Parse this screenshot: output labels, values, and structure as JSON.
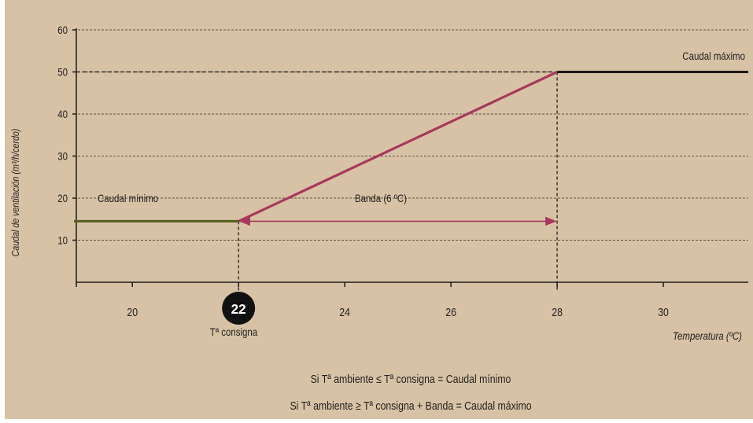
{
  "colors": {
    "background": "#d8c2a5",
    "grid": "#5e5448",
    "axis": "#1a1a1a",
    "ramp": "#a8385e",
    "min_segment": "#4f5e1e",
    "max_segment": "#1a1a1a",
    "band_arrow": "#a8385e",
    "setpoint_circle": "#111111",
    "setpoint_text": "#ffffff"
  },
  "chart_data": {
    "type": "line",
    "ylabel": "Caudal de ventilación (m³/h/cerdo)",
    "xlabel": "Temperatura (ºC)",
    "xlim": [
      18.9,
      31.6
    ],
    "ylim": [
      0,
      60
    ],
    "x_ticks": [
      {
        "value": 20,
        "label": "20"
      },
      {
        "value": 22,
        "label": "22"
      },
      {
        "value": 24,
        "label": "24"
      },
      {
        "value": 26,
        "label": "26"
      },
      {
        "value": 28,
        "label": "28"
      },
      {
        "value": 30,
        "label": "30"
      }
    ],
    "y_ticks": [
      {
        "value": 10,
        "label": "10"
      },
      {
        "value": 20,
        "label": "20"
      },
      {
        "value": 30,
        "label": "30"
      },
      {
        "value": 40,
        "label": "40"
      },
      {
        "value": 50,
        "label": "50"
      },
      {
        "value": 60,
        "label": "60"
      }
    ],
    "grid_y": [
      10,
      20,
      30,
      40,
      50,
      60
    ],
    "series": [
      {
        "role": "minimum",
        "color_key": "min_segment",
        "x": [
          18.9,
          22
        ],
        "y": [
          14.5,
          14.5
        ]
      },
      {
        "role": "ramp",
        "color_key": "ramp",
        "x": [
          22,
          28
        ],
        "y": [
          14.5,
          50
        ]
      },
      {
        "role": "maximum",
        "color_key": "max_segment",
        "x": [
          28,
          31.6
        ],
        "y": [
          50,
          50
        ]
      }
    ],
    "setpoint": {
      "x": 22,
      "value_label": "22",
      "caption": "Tª consigna"
    },
    "band": {
      "from": 22,
      "to": 28,
      "y": 14.5,
      "label": "Banda (6 ºC)"
    },
    "annotations": {
      "min_label": "Caudal mínimo",
      "max_label": "Caudal máximo"
    },
    "guides": [
      {
        "x": 22,
        "y": 14.5
      },
      {
        "x": 28,
        "y": 50
      }
    ]
  },
  "notes": [
    "Si Tª ambiente ≤ Tª consigna = Caudal mínimo",
    "Si Tª ambiente ≥ Tª consigna + Banda = Caudal máximo"
  ]
}
